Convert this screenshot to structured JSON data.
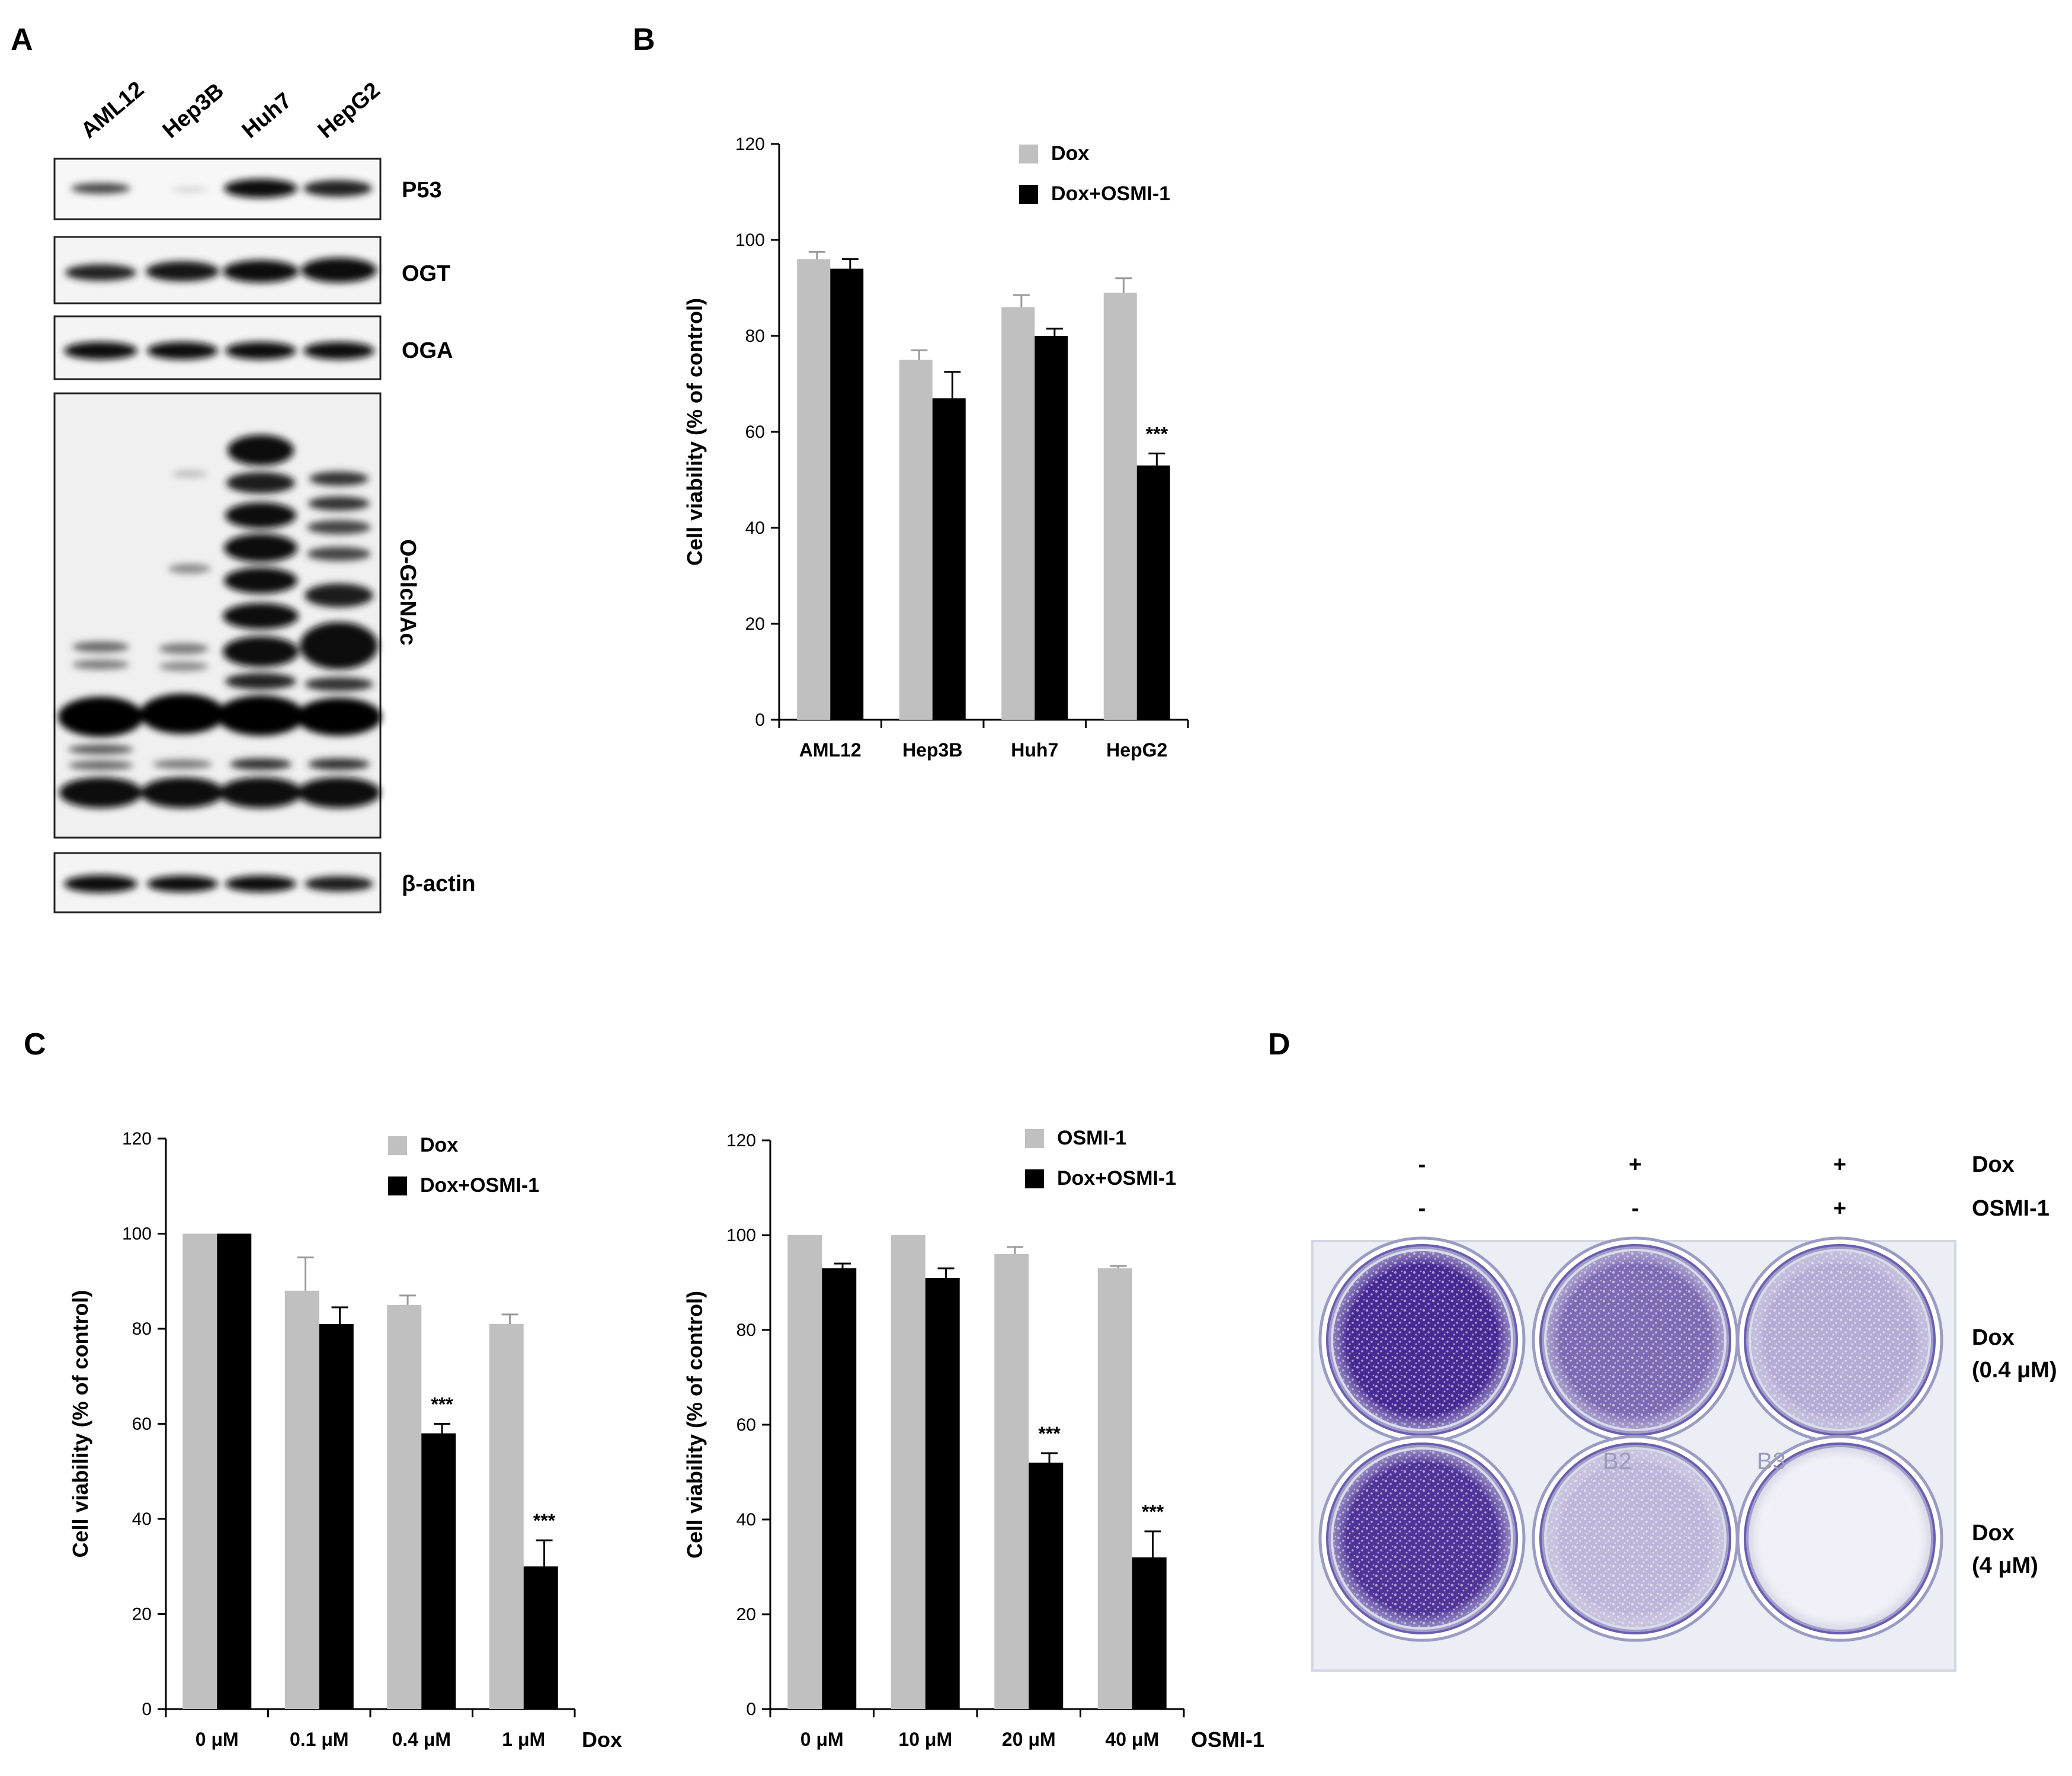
{
  "panels": {
    "A": {
      "label": "A"
    },
    "B": {
      "label": "B"
    },
    "C": {
      "label": "C"
    },
    "D": {
      "label": "D"
    }
  },
  "western_blot": {
    "lanes": [
      "AML12",
      "Hep3B",
      "Huh7",
      "HepG2"
    ],
    "blots": [
      "P53",
      "OGT",
      "OGA",
      "O-GlcNAc",
      "β-actin"
    ]
  },
  "chart_data": [
    {
      "type": "bar",
      "panel": "B",
      "categories": [
        "AML12",
        "Hep3B",
        "Huh7",
        "HepG2"
      ],
      "ylabel": "Cell viability (% of control)",
      "xlabel": "",
      "ylim": [
        0,
        120
      ],
      "yticks": [
        0,
        20,
        40,
        60,
        80,
        100,
        120
      ],
      "legend": "top-right",
      "series": [
        {
          "name": "Dox",
          "color": "#c0c0c0",
          "values": [
            96,
            75,
            86,
            89
          ],
          "errors": [
            1.5,
            2,
            2.5,
            3
          ]
        },
        {
          "name": "Dox+OSMI-1",
          "color": "#000000",
          "values": [
            94,
            67,
            80,
            53
          ],
          "errors": [
            2,
            5.5,
            1.5,
            2.5
          ]
        }
      ],
      "annotations": [
        {
          "category": "HepG2",
          "series": "Dox+OSMI-1",
          "text": "***"
        }
      ]
    },
    {
      "type": "bar",
      "panel": "C-left",
      "categories": [
        "0 μM",
        "0.1 μM",
        "0.4 μM",
        "1 μM"
      ],
      "xlabel": "Dox",
      "ylabel": "Cell viability (% of control)",
      "ylim": [
        0,
        120
      ],
      "yticks": [
        0,
        20,
        40,
        60,
        80,
        100,
        120
      ],
      "legend": "top-right",
      "series": [
        {
          "name": "Dox",
          "color": "#c0c0c0",
          "values": [
            100,
            88,
            85,
            81
          ],
          "errors": [
            0,
            7,
            2,
            2
          ]
        },
        {
          "name": "Dox+OSMI-1",
          "color": "#000000",
          "values": [
            100,
            81,
            58,
            30
          ],
          "errors": [
            0,
            3.5,
            2,
            5.5
          ]
        }
      ],
      "annotations": [
        {
          "category": "0.4 μM",
          "series": "Dox+OSMI-1",
          "text": "***"
        },
        {
          "category": "1 μM",
          "series": "Dox+OSMI-1",
          "text": "***"
        }
      ]
    },
    {
      "type": "bar",
      "panel": "C-right",
      "categories": [
        "0 μM",
        "10 μM",
        "20 μM",
        "40 μM"
      ],
      "xlabel": "OSMI-1",
      "ylabel": "Cell viability (% of control)",
      "ylim": [
        0,
        120
      ],
      "yticks": [
        0,
        20,
        40,
        60,
        80,
        100,
        120
      ],
      "legend": "top-right",
      "series": [
        {
          "name": "OSMI-1",
          "color": "#c0c0c0",
          "values": [
            100,
            100,
            96,
            93
          ],
          "errors": [
            0,
            0,
            1.5,
            0.5
          ]
        },
        {
          "name": "Dox+OSMI-1",
          "color": "#000000",
          "values": [
            93,
            91,
            52,
            32
          ],
          "errors": [
            1,
            2,
            2,
            5.5
          ]
        }
      ],
      "annotations": [
        {
          "category": "20 μM",
          "series": "Dox+OSMI-1",
          "text": "***"
        },
        {
          "category": "40 μM",
          "series": "Dox+OSMI-1",
          "text": "***"
        }
      ]
    }
  ],
  "panel_d": {
    "dox_row": [
      "-",
      "+",
      "+"
    ],
    "osmi_row": [
      "-",
      "-",
      "+"
    ],
    "dox_label": "Dox",
    "osmi_label": "OSMI-1",
    "row1_label": [
      "Dox",
      "(0.4 μM)"
    ],
    "row2_label": [
      "Dox",
      "(4 μM)"
    ],
    "well_labels": [
      "B2",
      "B3"
    ],
    "stain_levels": [
      [
        0.95,
        0.65,
        0.35
      ],
      [
        0.9,
        0.3,
        0.03
      ]
    ],
    "colors": {
      "stain": "#3c1f8e",
      "plate": "#eceef6"
    }
  }
}
